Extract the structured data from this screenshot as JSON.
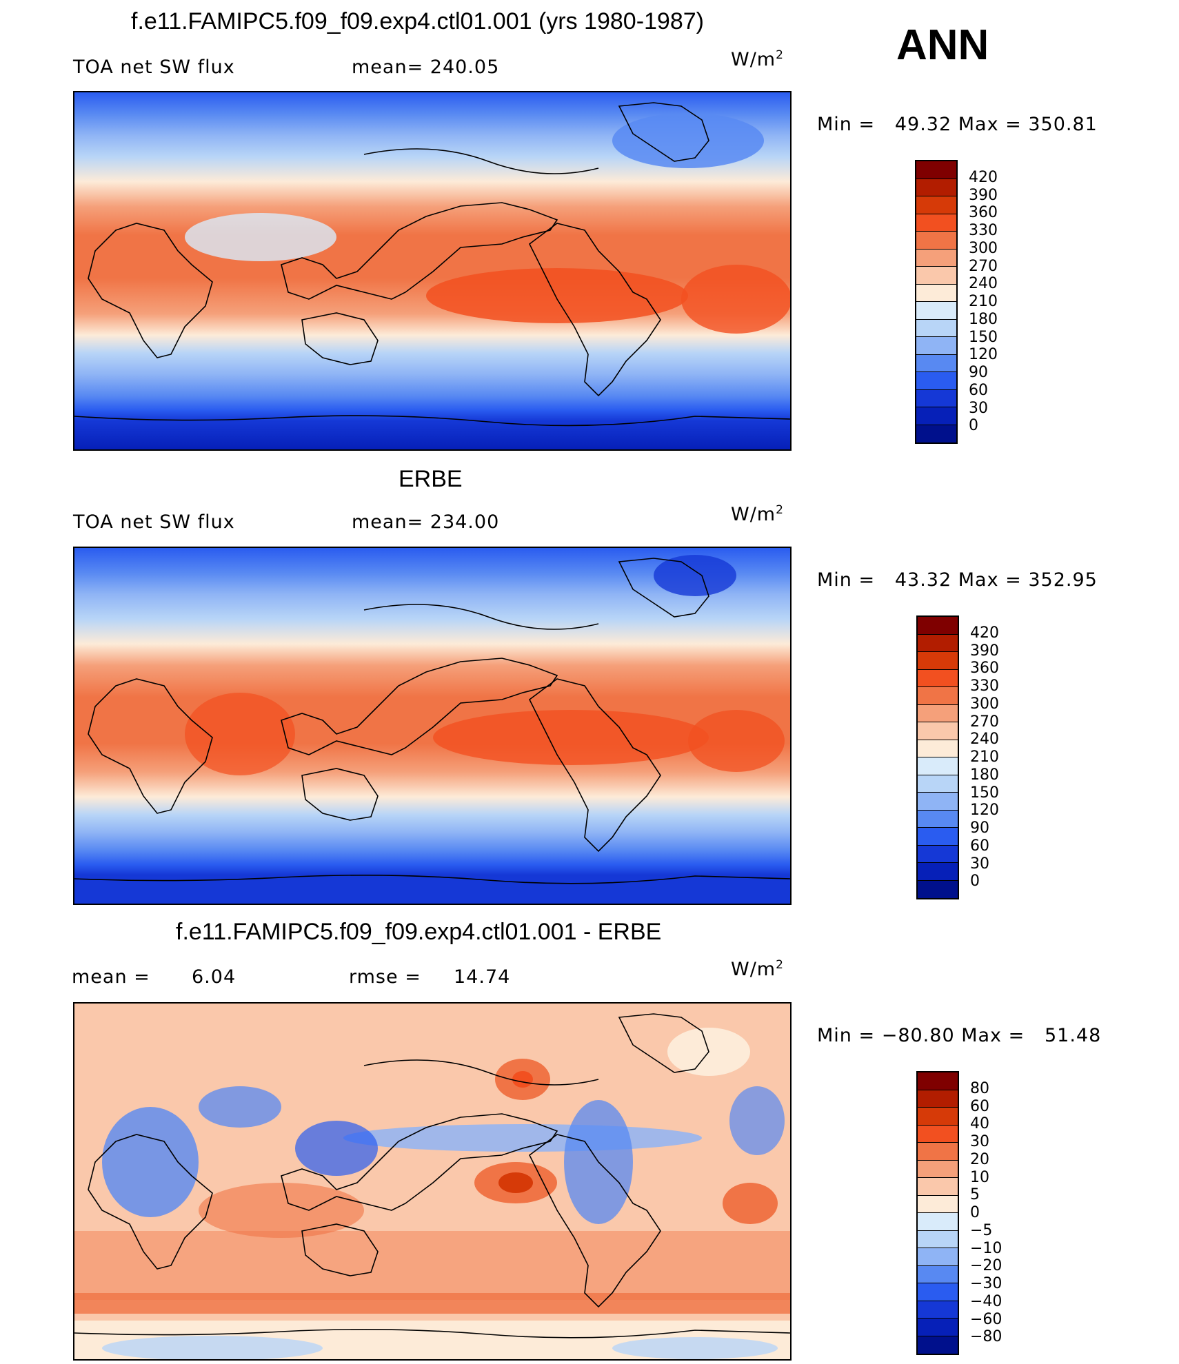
{
  "header": {
    "season": "ANN"
  },
  "panels": [
    {
      "title": "f.e11.FAMIPC5.f09_f09.exp4.ctl01.001 (yrs 1980-1987)",
      "left_label": "TOA net SW flux",
      "stat_label": "mean= 240.05",
      "unit_base": "W/m",
      "unit_exp": "2",
      "minmax": "Min =   49.32 Max = 350.81",
      "colorbar": {
        "levels": [
          "420",
          "390",
          "360",
          "330",
          "300",
          "270",
          "240",
          "210",
          "180",
          "150",
          "120",
          "90",
          "60",
          "30",
          "0"
        ],
        "colors": [
          "#7f0000",
          "#b21d00",
          "#d63a08",
          "#f25020",
          "#f07446",
          "#f5a07a",
          "#fac8ab",
          "#fdebd8",
          "#d9ebfa",
          "#b8d5f7",
          "#8fb4f5",
          "#5889f2",
          "#2a5cf0",
          "#1538d6",
          "#0620b8",
          "#00108c"
        ]
      }
    },
    {
      "title": "ERBE",
      "left_label": "TOA net SW flux",
      "stat_label": "mean= 234.00",
      "unit_base": "W/m",
      "unit_exp": "2",
      "minmax": "Min =   43.32 Max = 352.95",
      "colorbar": {
        "levels": [
          "420",
          "390",
          "360",
          "330",
          "300",
          "270",
          "240",
          "210",
          "180",
          "150",
          "120",
          "90",
          "60",
          "30",
          "0"
        ],
        "colors": [
          "#7f0000",
          "#b21d00",
          "#d63a08",
          "#f25020",
          "#f07446",
          "#f5a07a",
          "#fac8ab",
          "#fdebd8",
          "#d9ebfa",
          "#b8d5f7",
          "#8fb4f5",
          "#5889f2",
          "#2a5cf0",
          "#1538d6",
          "#0620b8",
          "#00108c"
        ]
      }
    },
    {
      "title": "f.e11.FAMIPC5.f09_f09.exp4.ctl01.001 - ERBE",
      "left_label": "mean =",
      "left_value": "6.04",
      "stat_label": "rmse =",
      "stat_value": "14.74",
      "unit_base": "W/m",
      "unit_exp": "2",
      "minmax": "Min = −80.80 Max =   51.48",
      "colorbar": {
        "levels": [
          "80",
          "60",
          "40",
          "30",
          "20",
          "10",
          "5",
          "0",
          "−5",
          "−10",
          "−20",
          "−30",
          "−40",
          "−60",
          "−80"
        ],
        "colors": [
          "#7f0000",
          "#b21d00",
          "#d63a08",
          "#f25020",
          "#f07446",
          "#f5a07a",
          "#fac8ab",
          "#fdebd8",
          "#d9ebfa",
          "#b8d5f7",
          "#8fb4f5",
          "#5889f2",
          "#2a5cf0",
          "#1538d6",
          "#0620b8",
          "#00108c"
        ]
      }
    }
  ]
}
